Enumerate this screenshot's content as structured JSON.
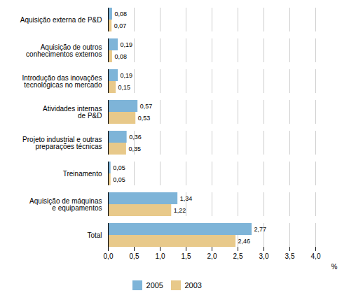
{
  "chart_data": {
    "type": "bar",
    "orientation": "horizontal",
    "categories": [
      "Total",
      "Aquisição de máquinas\ne equipamentos",
      "Treinamento",
      "Projeto industrial e outras\npreparações técnicas",
      "Atividades internas\nde P&D",
      "Introdução das inovações\ntecnológicas no mercado",
      "Aquisição de outros\nconhecimentos externos",
      "Aquisição externa de P&D"
    ],
    "series": [
      {
        "name": "2005",
        "color": "#7EB4D8",
        "values": [
          2.77,
          1.34,
          0.05,
          0.36,
          0.57,
          0.19,
          0.19,
          0.08
        ],
        "value_labels": [
          "2,77",
          "1,34",
          "0,05",
          "0,36",
          "0,57",
          "0,19",
          "0,19",
          "0,08"
        ]
      },
      {
        "name": "2003",
        "color": "#E8C98A",
        "values": [
          2.46,
          1.22,
          0.05,
          0.35,
          0.53,
          0.15,
          0.08,
          0.07
        ],
        "value_labels": [
          "2,46",
          "1,22",
          "0,05",
          "0,35",
          "0,53",
          "0,15",
          "0,08",
          "0,07"
        ]
      }
    ],
    "xlabel": "%",
    "xlim": [
      0,
      4.0
    ],
    "xticks": [
      {
        "value": 0.0,
        "label": "0,0"
      },
      {
        "value": 0.5,
        "label": "0,5"
      },
      {
        "value": 1.0,
        "label": "1,0"
      },
      {
        "value": 1.5,
        "label": "1,5"
      },
      {
        "value": 2.0,
        "label": "2,0"
      },
      {
        "value": 2.5,
        "label": "2,5"
      },
      {
        "value": 3.0,
        "label": "3,0"
      },
      {
        "value": 3.5,
        "label": "3,5"
      },
      {
        "value": 4.0,
        "label": "4,0"
      }
    ],
    "grid": true,
    "data_labels": true,
    "legend": "bottom"
  }
}
